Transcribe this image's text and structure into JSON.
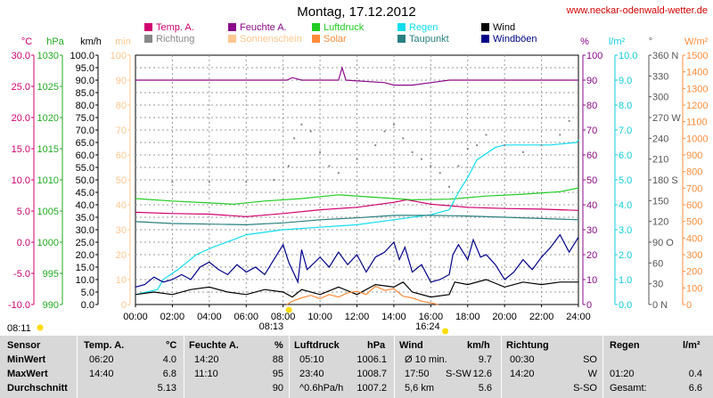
{
  "title": "Montag, 17.12.2012",
  "website": "www.neckar-odenwald-wetter.de",
  "colors": {
    "temp": "#d0006f",
    "feuchte": "#8a0a8a",
    "luftdruck": "#22cc22",
    "regen": "#11ddee",
    "wind": "#000000",
    "richtung": "#888888",
    "sonnenschein": "#ffc890",
    "solar": "#ff8c3a",
    "taupunkt": "#2a7f7f",
    "windboeen": "#000088",
    "sun": "#ffdd00"
  },
  "legend": [
    {
      "key": "temp",
      "label": "Temp. A."
    },
    {
      "key": "feuchte",
      "label": "Feuchte A."
    },
    {
      "key": "luftdruck",
      "label": "Luftdruck"
    },
    {
      "key": "regen",
      "label": "Regen"
    },
    {
      "key": "wind",
      "label": "Wind"
    },
    {
      "key": "richtung",
      "label": "Richtung"
    },
    {
      "key": "sonnenschein",
      "label": "Sonnenschein"
    },
    {
      "key": "solar",
      "label": "Solar"
    },
    {
      "key": "taupunkt",
      "label": "Taupunkt"
    },
    {
      "key": "windboeen",
      "label": "Windböen"
    }
  ],
  "axes_left": [
    {
      "unit": "°C",
      "color": "#d0006f",
      "ticks": [
        "30.0",
        "25.0",
        "20.0",
        "15.0",
        "10.0",
        "5.0",
        "0.0",
        "-5.0",
        "-10.0"
      ]
    },
    {
      "unit": "hPa",
      "color": "#22aa22",
      "ticks": [
        "1030",
        "1025",
        "1020",
        "1015",
        "1010",
        "1005",
        "1000",
        "995",
        "990"
      ]
    },
    {
      "unit": "km/h",
      "color": "#000000",
      "ticks": [
        "100.0",
        "95.0",
        "90.0",
        "85.0",
        "80.0",
        "75.0",
        "70.0",
        "65.0",
        "60.0",
        "55.0",
        "50.0",
        "45.0",
        "40.0",
        "35.0",
        "30.0",
        "25.0",
        "20.0",
        "15.0",
        "10.0",
        "5.0",
        "0.0"
      ]
    },
    {
      "unit": "min",
      "color": "#ffc890",
      "ticks": [
        "100",
        "90",
        "80",
        "70",
        "60",
        "50",
        "40",
        "30",
        "20",
        "10",
        "0"
      ]
    }
  ],
  "axes_right": [
    {
      "unit": "%",
      "color": "#8a0a8a",
      "ticks": [
        "100",
        "90",
        "80",
        "70",
        "60",
        "50",
        "40",
        "30",
        "20",
        "10",
        "0"
      ]
    },
    {
      "unit": "l/m²",
      "color": "#11ccdd",
      "ticks": [
        "10.0",
        "9.0",
        "8.0",
        "7.0",
        "6.0",
        "5.0",
        "4.0",
        "3.0",
        "2.0",
        "1.0",
        "0.0"
      ]
    },
    {
      "unit": "°",
      "color": "#555555",
      "ticks": [
        "360 N",
        "330",
        "300",
        "270 W",
        "240",
        "210",
        "180 S",
        "150",
        "120",
        "90 O",
        "60",
        "30",
        "0 N"
      ]
    },
    {
      "unit": "W/m²",
      "color": "#ff8c3a",
      "ticks": [
        "1500",
        "1400",
        "1300",
        "1200",
        "1100",
        "1000",
        "900",
        "800",
        "700",
        "600",
        "500",
        "400",
        "300",
        "200",
        "100",
        "0"
      ]
    }
  ],
  "sun": {
    "sunrise_left": "08:11",
    "sunrise": "08:13",
    "sunset": "16:24"
  },
  "chart_data": {
    "type": "line",
    "title": "Montag, 17.12.2012",
    "x_ticks": [
      "00:00",
      "02:00",
      "04:00",
      "06:00",
      "08:00",
      "10:00",
      "12:00",
      "14:00",
      "16:00",
      "18:00",
      "20:00",
      "22:00",
      "24:00"
    ],
    "xlim": [
      0,
      24
    ],
    "grid": true,
    "legend_position": "top",
    "series": [
      {
        "name": "Temp. A.",
        "axis": "°C",
        "ylim": [
          -10,
          30
        ],
        "points": [
          [
            0,
            4.8
          ],
          [
            2,
            4.6
          ],
          [
            4,
            4.5
          ],
          [
            6,
            4.1
          ],
          [
            8,
            4.6
          ],
          [
            10,
            5.2
          ],
          [
            12,
            5.6
          ],
          [
            14,
            6.4
          ],
          [
            14.7,
            6.8
          ],
          [
            16,
            6.1
          ],
          [
            18,
            5.6
          ],
          [
            20,
            5.4
          ],
          [
            22,
            5.3
          ],
          [
            24,
            5.1
          ]
        ]
      },
      {
        "name": "Feuchte A.",
        "axis": "%",
        "ylim": [
          0,
          100
        ],
        "points": [
          [
            0,
            90
          ],
          [
            6,
            90
          ],
          [
            8.2,
            90
          ],
          [
            8.5,
            91
          ],
          [
            9,
            90
          ],
          [
            11,
            90
          ],
          [
            11.2,
            95
          ],
          [
            11.4,
            90
          ],
          [
            13.5,
            89
          ],
          [
            14,
            88
          ],
          [
            15,
            88
          ],
          [
            16,
            89
          ],
          [
            17,
            90
          ],
          [
            24,
            90
          ]
        ]
      },
      {
        "name": "Luftdruck",
        "axis": "hPa",
        "ylim": [
          990,
          1030
        ],
        "points": [
          [
            0,
            1007.0
          ],
          [
            2,
            1006.6
          ],
          [
            4,
            1006.3
          ],
          [
            5.3,
            1006.1
          ],
          [
            7,
            1006.6
          ],
          [
            9,
            1007.0
          ],
          [
            11,
            1007.6
          ],
          [
            13,
            1007.2
          ],
          [
            15,
            1006.8
          ],
          [
            17,
            1006.9
          ],
          [
            19,
            1007.4
          ],
          [
            21,
            1007.7
          ],
          [
            23,
            1008.1
          ],
          [
            24,
            1008.7
          ]
        ]
      },
      {
        "name": "Regen",
        "axis": "l/m²",
        "ylim": [
          0,
          10
        ],
        "points": [
          [
            0,
            0.4
          ],
          [
            1.2,
            0.6
          ],
          [
            1.5,
            1.0
          ],
          [
            2.3,
            1.4
          ],
          [
            3.3,
            2.0
          ],
          [
            4.2,
            2.3
          ],
          [
            5.3,
            2.6
          ],
          [
            6,
            2.8
          ],
          [
            8,
            3.0
          ],
          [
            10,
            3.1
          ],
          [
            12,
            3.2
          ],
          [
            14,
            3.4
          ],
          [
            16,
            3.6
          ],
          [
            17,
            3.8
          ],
          [
            17.5,
            4.5
          ],
          [
            18,
            5.1
          ],
          [
            18.5,
            5.8
          ],
          [
            19.5,
            6.3
          ],
          [
            20,
            6.4
          ],
          [
            21,
            6.4
          ],
          [
            22.5,
            6.4
          ],
          [
            23.9,
            6.5
          ],
          [
            24,
            6.6
          ]
        ]
      },
      {
        "name": "Taupunkt",
        "axis": "°C",
        "ylim": [
          -10,
          30
        ],
        "points": [
          [
            0,
            3.3
          ],
          [
            2,
            3.0
          ],
          [
            4,
            2.9
          ],
          [
            6,
            2.8
          ],
          [
            8,
            3.1
          ],
          [
            10,
            3.6
          ],
          [
            12,
            3.9
          ],
          [
            14,
            4.3
          ],
          [
            16,
            4.3
          ],
          [
            18,
            4.2
          ],
          [
            20,
            4.0
          ],
          [
            22,
            3.8
          ],
          [
            24,
            3.6
          ]
        ]
      },
      {
        "name": "Windböen",
        "axis": "km/h",
        "ylim": [
          0,
          100
        ],
        "points": [
          [
            0,
            7
          ],
          [
            0.5,
            8
          ],
          [
            1,
            11
          ],
          [
            1.5,
            9
          ],
          [
            2,
            10
          ],
          [
            2.5,
            12
          ],
          [
            3,
            10
          ],
          [
            3.5,
            15
          ],
          [
            4,
            17
          ],
          [
            4.5,
            14
          ],
          [
            5,
            12
          ],
          [
            5.5,
            16
          ],
          [
            6,
            13
          ],
          [
            6.5,
            15
          ],
          [
            7,
            12
          ],
          [
            7.5,
            18
          ],
          [
            8,
            24
          ],
          [
            8.3,
            17
          ],
          [
            8.8,
            9
          ],
          [
            9,
            22
          ],
          [
            9.3,
            14
          ],
          [
            10,
            19
          ],
          [
            10.5,
            15
          ],
          [
            11,
            21
          ],
          [
            11.5,
            16
          ],
          [
            12,
            20
          ],
          [
            12.5,
            13
          ],
          [
            13,
            19
          ],
          [
            13.5,
            21
          ],
          [
            14,
            25
          ],
          [
            14.3,
            18
          ],
          [
            14.6,
            23
          ],
          [
            15,
            13
          ],
          [
            15.5,
            16
          ],
          [
            16,
            9
          ],
          [
            16.5,
            10
          ],
          [
            17,
            12
          ],
          [
            17.2,
            20
          ],
          [
            17.5,
            24
          ],
          [
            18,
            18
          ],
          [
            18.3,
            26
          ],
          [
            18.7,
            19
          ],
          [
            19,
            20
          ],
          [
            19.5,
            16
          ],
          [
            20,
            10
          ],
          [
            20.5,
            13
          ],
          [
            21,
            18
          ],
          [
            21.5,
            14
          ],
          [
            22,
            19
          ],
          [
            22.5,
            23
          ],
          [
            23,
            28
          ],
          [
            23.5,
            21
          ],
          [
            24,
            27
          ]
        ]
      },
      {
        "name": "Wind",
        "axis": "km/h",
        "ylim": [
          0,
          100
        ],
        "points": [
          [
            0,
            4
          ],
          [
            1,
            5
          ],
          [
            2,
            4
          ],
          [
            3,
            6
          ],
          [
            4,
            7
          ],
          [
            5,
            5
          ],
          [
            6,
            4
          ],
          [
            7,
            6
          ],
          [
            8,
            5
          ],
          [
            8.5,
            3
          ],
          [
            9,
            6
          ],
          [
            10,
            4
          ],
          [
            11,
            7
          ],
          [
            12,
            4
          ],
          [
            13,
            8
          ],
          [
            14,
            7
          ],
          [
            14.5,
            9
          ],
          [
            15,
            5
          ],
          [
            16,
            3
          ],
          [
            17,
            4
          ],
          [
            17.3,
            9
          ],
          [
            18,
            8
          ],
          [
            19,
            10
          ],
          [
            20,
            7
          ],
          [
            21,
            9
          ],
          [
            22,
            8
          ],
          [
            23,
            9
          ],
          [
            24,
            9
          ]
        ]
      },
      {
        "name": "Richtung",
        "axis": "°",
        "ylim": [
          0,
          360
        ],
        "style": "dots",
        "points": [
          [
            0,
            177
          ],
          [
            2,
            177
          ],
          [
            4,
            177
          ],
          [
            6,
            177
          ],
          [
            7.5,
            180
          ],
          [
            8.3,
            200
          ],
          [
            8.6,
            240
          ],
          [
            9,
            260
          ],
          [
            9.5,
            250
          ],
          [
            10,
            220
          ],
          [
            10.5,
            200
          ],
          [
            11,
            190
          ],
          [
            12,
            210
          ],
          [
            13,
            230
          ],
          [
            13.5,
            250
          ],
          [
            14,
            260
          ],
          [
            14.5,
            240
          ],
          [
            15,
            220
          ],
          [
            15.5,
            210
          ],
          [
            16,
            200
          ],
          [
            16.5,
            190
          ],
          [
            17,
            170
          ],
          [
            17.5,
            200
          ],
          [
            18,
            225
          ],
          [
            18.5,
            230
          ],
          [
            19,
            245
          ],
          [
            20,
            230
          ],
          [
            21,
            220
          ],
          [
            22,
            230
          ],
          [
            23,
            245
          ],
          [
            23.5,
            265
          ],
          [
            24,
            270
          ]
        ]
      },
      {
        "name": "Solar",
        "axis": "W/m²",
        "ylim": [
          0,
          1500
        ],
        "points": [
          [
            8.2,
            0
          ],
          [
            8.5,
            20
          ],
          [
            9,
            40
          ],
          [
            9.5,
            55
          ],
          [
            10,
            35
          ],
          [
            10.5,
            60
          ],
          [
            11,
            45
          ],
          [
            11.5,
            70
          ],
          [
            12,
            80
          ],
          [
            12.5,
            60
          ],
          [
            13,
            110
          ],
          [
            13.5,
            85
          ],
          [
            14,
            95
          ],
          [
            14.5,
            50
          ],
          [
            15,
            40
          ],
          [
            15.5,
            20
          ],
          [
            16,
            10
          ],
          [
            16.4,
            0
          ]
        ]
      }
    ]
  },
  "table": {
    "headers": {
      "sensor": "Sensor",
      "temp": "Temp. A.",
      "temp_unit": "°C",
      "feuchte": "Feuchte A.",
      "feuchte_unit": "%",
      "luft": "Luftdruck",
      "luft_unit": "hPa",
      "wind": "Wind",
      "wind_unit": "km/h",
      "richtung": "Richtung",
      "regen": "Regen",
      "regen_unit": "l/m²"
    },
    "rows": [
      {
        "label": "MinWert",
        "temp_time": "06:20",
        "temp_val": "4.0",
        "feuchte_time": "14:20",
        "feuchte_val": "88",
        "luft_time": "05:10",
        "luft_val": "1006.1",
        "wind_time": "Ø 10 min.",
        "wind_extra": "",
        "wind_val": "9.7",
        "richtung_time": "00:30",
        "richtung_val": "SO",
        "regen_time": "",
        "regen_val": ""
      },
      {
        "label": "MaxWert",
        "temp_time": "14:40",
        "temp_val": "6.8",
        "feuchte_time": "11:10",
        "feuchte_val": "95",
        "luft_time": "23:40",
        "luft_val": "1008.7",
        "wind_time": "17:50",
        "wind_extra": "S-SW",
        "wind_val": "12.6",
        "richtung_time": "14:20",
        "richtung_val": "W",
        "regen_time": "01:20",
        "regen_val": "0.4"
      },
      {
        "label": "Durchschnitt",
        "temp_time": "",
        "temp_val": "5.13",
        "feuchte_time": "",
        "feuchte_val": "90",
        "luft_time": "^0.6hPa/h",
        "luft_val": "1007.2",
        "wind_time": "5,6 km",
        "wind_extra": "",
        "wind_val": "5.6",
        "richtung_time": "",
        "richtung_val": "S-SO",
        "regen_time": "Gesamt:",
        "regen_val": "6.6"
      }
    ]
  }
}
